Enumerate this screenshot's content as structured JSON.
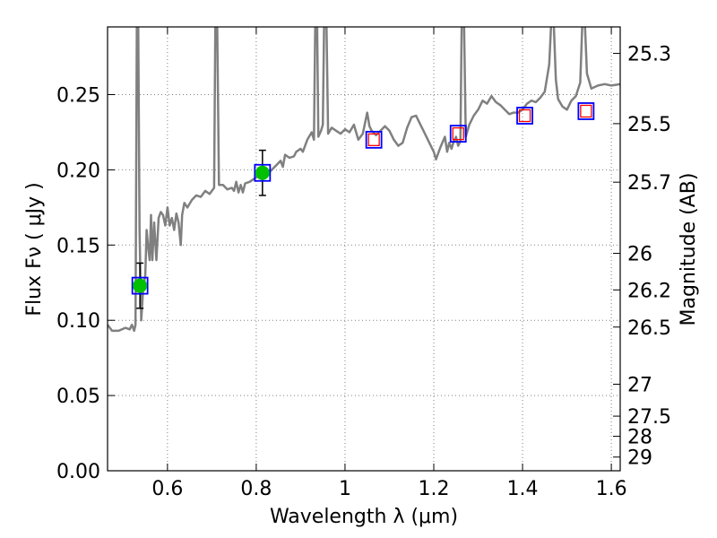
{
  "chart_data": {
    "type": "line",
    "xlabel": "Wavelength  λ (μm)",
    "ylabel": "Flux  Fν  ( μJy )",
    "ylabel_right": "Magnitude (AB)",
    "xlim": [
      0.465,
      1.62
    ],
    "ylim": [
      0.0,
      0.295
    ],
    "grid": true,
    "x_ticks": [
      {
        "value": 0.6,
        "label": "0.6"
      },
      {
        "value": 0.8,
        "label": "0.8"
      },
      {
        "value": 1.0,
        "label": "1"
      },
      {
        "value": 1.2,
        "label": "1.2"
      },
      {
        "value": 1.4,
        "label": "1.4"
      },
      {
        "value": 1.6,
        "label": "1.6"
      }
    ],
    "y_ticks": [
      {
        "value": 0.0,
        "label": "0.00"
      },
      {
        "value": 0.05,
        "label": "0.05"
      },
      {
        "value": 0.1,
        "label": "0.10"
      },
      {
        "value": 0.15,
        "label": "0.15"
      },
      {
        "value": 0.2,
        "label": "0.20"
      },
      {
        "value": 0.25,
        "label": "0.25"
      }
    ],
    "right_ticks": [
      {
        "flux": 0.2774,
        "label": "25.3"
      },
      {
        "flux": 0.2307,
        "label": "25.5"
      },
      {
        "flux": 0.1918,
        "label": "25.7"
      },
      {
        "flux": 0.1445,
        "label": "26"
      },
      {
        "flux": 0.1202,
        "label": "26.2"
      },
      {
        "flux": 0.0955,
        "label": "26.5"
      },
      {
        "flux": 0.0575,
        "label": "27"
      },
      {
        "flux": 0.0363,
        "label": "27.5"
      },
      {
        "flux": 0.0229,
        "label": "28"
      },
      {
        "flux": 0.0091,
        "label": "29"
      }
    ],
    "colors": {
      "spectrum": "#808080",
      "observed_marker": "#00c000",
      "square_outline": "#0000ff",
      "model_square": "#ff0000",
      "grid": "#808080"
    },
    "spectrum": [
      [
        0.465,
        0.097
      ],
      [
        0.475,
        0.093
      ],
      [
        0.49,
        0.093
      ],
      [
        0.505,
        0.095
      ],
      [
        0.515,
        0.094
      ],
      [
        0.52,
        0.097
      ],
      [
        0.525,
        0.093
      ],
      [
        0.528,
        0.097
      ],
      [
        0.531,
        0.3
      ],
      [
        0.534,
        0.3
      ],
      [
        0.537,
        0.16
      ],
      [
        0.541,
        0.1
      ],
      [
        0.545,
        0.12
      ],
      [
        0.55,
        0.13
      ],
      [
        0.553,
        0.16
      ],
      [
        0.556,
        0.15
      ],
      [
        0.56,
        0.14
      ],
      [
        0.563,
        0.17
      ],
      [
        0.566,
        0.14
      ],
      [
        0.57,
        0.165
      ],
      [
        0.575,
        0.14
      ],
      [
        0.58,
        0.168
      ],
      [
        0.585,
        0.172
      ],
      [
        0.59,
        0.17
      ],
      [
        0.595,
        0.163
      ],
      [
        0.6,
        0.175
      ],
      [
        0.605,
        0.163
      ],
      [
        0.61,
        0.168
      ],
      [
        0.615,
        0.16
      ],
      [
        0.62,
        0.171
      ],
      [
        0.625,
        0.165
      ],
      [
        0.63,
        0.15
      ],
      [
        0.633,
        0.17
      ],
      [
        0.638,
        0.178
      ],
      [
        0.645,
        0.175
      ],
      [
        0.655,
        0.18
      ],
      [
        0.665,
        0.183
      ],
      [
        0.675,
        0.182
      ],
      [
        0.685,
        0.186
      ],
      [
        0.695,
        0.184
      ],
      [
        0.705,
        0.188
      ],
      [
        0.708,
        0.3
      ],
      [
        0.712,
        0.3
      ],
      [
        0.716,
        0.19
      ],
      [
        0.725,
        0.19
      ],
      [
        0.735,
        0.187
      ],
      [
        0.745,
        0.188
      ],
      [
        0.75,
        0.186
      ],
      [
        0.755,
        0.192
      ],
      [
        0.76,
        0.185
      ],
      [
        0.765,
        0.19
      ],
      [
        0.77,
        0.185
      ],
      [
        0.775,
        0.191
      ],
      [
        0.785,
        0.192
      ],
      [
        0.8,
        0.195
      ],
      [
        0.81,
        0.197
      ],
      [
        0.82,
        0.199
      ],
      [
        0.828,
        0.198
      ],
      [
        0.835,
        0.2
      ],
      [
        0.845,
        0.203
      ],
      [
        0.855,
        0.206
      ],
      [
        0.86,
        0.202
      ],
      [
        0.865,
        0.21
      ],
      [
        0.875,
        0.208
      ],
      [
        0.885,
        0.209
      ],
      [
        0.89,
        0.212
      ],
      [
        0.9,
        0.214
      ],
      [
        0.905,
        0.212
      ],
      [
        0.915,
        0.22
      ],
      [
        0.925,
        0.225
      ],
      [
        0.93,
        0.22
      ],
      [
        0.933,
        0.3
      ],
      [
        0.937,
        0.3
      ],
      [
        0.94,
        0.222
      ],
      [
        0.946,
        0.226
      ],
      [
        0.95,
        0.23
      ],
      [
        0.953,
        0.3
      ],
      [
        0.958,
        0.3
      ],
      [
        0.962,
        0.224
      ],
      [
        0.97,
        0.228
      ],
      [
        0.98,
        0.226
      ],
      [
        0.99,
        0.224
      ],
      [
        1.0,
        0.227
      ],
      [
        1.01,
        0.225
      ],
      [
        1.02,
        0.23
      ],
      [
        1.03,
        0.22
      ],
      [
        1.04,
        0.224
      ],
      [
        1.05,
        0.238
      ],
      [
        1.055,
        0.229
      ],
      [
        1.06,
        0.226
      ],
      [
        1.07,
        0.223
      ],
      [
        1.08,
        0.226
      ],
      [
        1.09,
        0.229
      ],
      [
        1.1,
        0.226
      ],
      [
        1.11,
        0.22
      ],
      [
        1.12,
        0.216
      ],
      [
        1.13,
        0.218
      ],
      [
        1.14,
        0.228
      ],
      [
        1.15,
        0.235
      ],
      [
        1.16,
        0.236
      ],
      [
        1.17,
        0.23
      ],
      [
        1.18,
        0.224
      ],
      [
        1.19,
        0.218
      ],
      [
        1.2,
        0.212
      ],
      [
        1.205,
        0.207
      ],
      [
        1.215,
        0.215
      ],
      [
        1.225,
        0.222
      ],
      [
        1.23,
        0.212
      ],
      [
        1.235,
        0.218
      ],
      [
        1.24,
        0.214
      ],
      [
        1.245,
        0.219
      ],
      [
        1.25,
        0.222
      ],
      [
        1.255,
        0.216
      ],
      [
        1.26,
        0.219
      ],
      [
        1.263,
        0.3
      ],
      [
        1.268,
        0.3
      ],
      [
        1.272,
        0.222
      ],
      [
        1.28,
        0.23
      ],
      [
        1.29,
        0.236
      ],
      [
        1.3,
        0.24
      ],
      [
        1.31,
        0.246
      ],
      [
        1.32,
        0.244
      ],
      [
        1.33,
        0.249
      ],
      [
        1.34,
        0.245
      ],
      [
        1.35,
        0.243
      ],
      [
        1.36,
        0.24
      ],
      [
        1.37,
        0.237
      ],
      [
        1.38,
        0.238
      ],
      [
        1.39,
        0.238
      ],
      [
        1.4,
        0.24
      ],
      [
        1.41,
        0.244
      ],
      [
        1.42,
        0.246
      ],
      [
        1.43,
        0.245
      ],
      [
        1.44,
        0.248
      ],
      [
        1.45,
        0.252
      ],
      [
        1.46,
        0.27
      ],
      [
        1.465,
        0.3
      ],
      [
        1.47,
        0.3
      ],
      [
        1.475,
        0.26
      ],
      [
        1.48,
        0.247
      ],
      [
        1.49,
        0.242
      ],
      [
        1.5,
        0.24
      ],
      [
        1.51,
        0.246
      ],
      [
        1.52,
        0.249
      ],
      [
        1.53,
        0.258
      ],
      [
        1.535,
        0.3
      ],
      [
        1.54,
        0.3
      ],
      [
        1.545,
        0.264
      ],
      [
        1.555,
        0.254
      ],
      [
        1.57,
        0.256
      ],
      [
        1.585,
        0.257
      ],
      [
        1.6,
        0.256
      ],
      [
        1.62,
        0.257
      ]
    ],
    "observed_points": [
      {
        "x": 0.538,
        "y": 0.123,
        "yerr_low": 0.108,
        "yerr_high": 0.138
      },
      {
        "x": 0.814,
        "y": 0.198,
        "yerr_low": 0.183,
        "yerr_high": 0.213
      }
    ],
    "model_squares": [
      {
        "x": 0.538,
        "y": 0.123,
        "has_red": false
      },
      {
        "x": 0.814,
        "y": 0.198,
        "has_red": false
      },
      {
        "x": 1.065,
        "y": 0.22,
        "has_red": true
      },
      {
        "x": 1.255,
        "y": 0.224,
        "has_red": true
      },
      {
        "x": 1.405,
        "y": 0.236,
        "has_red": true
      },
      {
        "x": 1.543,
        "y": 0.239,
        "has_red": true
      }
    ]
  }
}
